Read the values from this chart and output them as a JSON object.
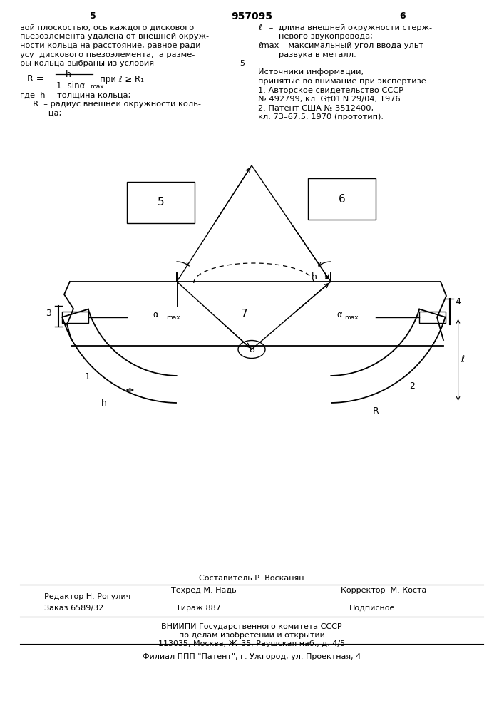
{
  "page_title": "957095",
  "page_num_left": "5",
  "page_num_right": "6",
  "bg_color": "#ffffff",
  "left_col": [
    "вой плоскостью, ось каждого дискового",
    "пьезоэлемента удалена от внешней окруж-",
    "ности кольца на расстояние, равное ради-",
    "усу  дискового пьезоэлемента,  а разме-",
    "ры кольца выбраны из условия"
  ],
  "left_col2": [
    "где  h  – толщина кольца;",
    "     R  – радиус внешней окружности коль-",
    "           ца;"
  ],
  "right_col": [
    "ℓ   –  длина внешней окружности стерж-",
    "        невого звукопровода;",
    "ℓmax – максимальный угол ввода ульт-",
    "        развука в металл.",
    "",
    "Источники информации,",
    "принятые во внимание при экспертизе",
    "1. Авторское свидетельство СССР",
    "№ 492799, кл. G†01 N 29/04, 1976.",
    "2. Патент США № 3512400,",
    "кл. 73–67.5, 1970 (прототип)."
  ],
  "footer_composer": "Составитель Р. Восканян",
  "footer_editor": "Редактор Н. Рогулич",
  "footer_techred": "Техред М. Надь",
  "footer_corrector": "Корректор  М. Коста",
  "footer_order": "Заказ 6589/32",
  "footer_print": "Тираж 887",
  "footer_signed": "Подписное",
  "footer_org1": "ВНИИПИ Государственного комитета СССР",
  "footer_org2": "по делам изобретений и открытий",
  "footer_addr": "113035, Москва, Ж–35, Раушская наб., д. 4/5",
  "footer_branch": "Филиал ППП \"Патент\", г. Ужгород, ул. Проектная, 4"
}
